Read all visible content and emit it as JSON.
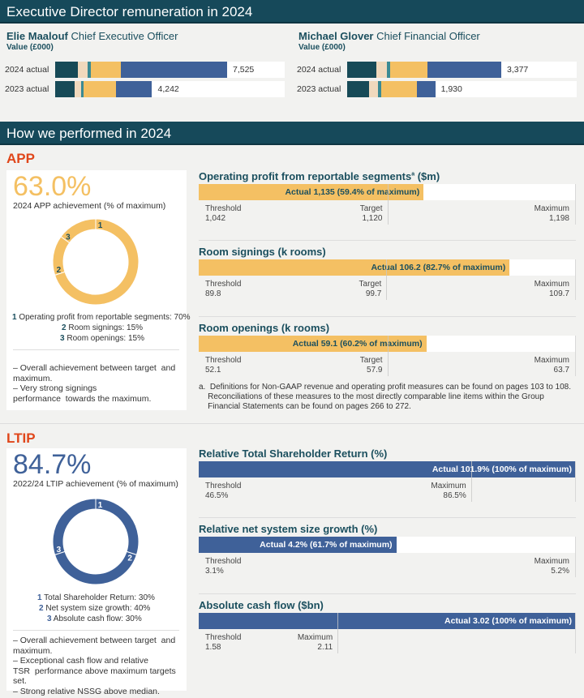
{
  "colors": {
    "dark_teal": "#174a57",
    "beige": "#f0d9bd",
    "teal": "#3b8a94",
    "yellow": "#f4c063",
    "blue": "#3f6199",
    "orange": "#e0461a",
    "header": "#16495a"
  },
  "header1": "Executive Director remuneration in 2024",
  "header2": "How we performed in 2024",
  "remuneration": {
    "value_label": "Value (£000)",
    "directors": [
      {
        "name": "Elie Maalouf",
        "role": "Chief Executive Officer",
        "rows": [
          {
            "label": "2024 actual",
            "total": "7,525",
            "total_value": 7525,
            "segments": [
              1010,
              420,
              140,
              1290,
              4665
            ]
          },
          {
            "label": "2023 actual",
            "total": "4,242",
            "total_value": 4242,
            "segments": [
              835,
              313,
              104,
              1426,
              1564
            ]
          }
        ]
      },
      {
        "name": "Michael Glover",
        "role": "Chief Financial Officer",
        "rows": [
          {
            "label": "2024 actual",
            "total": "3,377",
            "total_value": 3377,
            "segments": [
              644,
              226,
              70,
              818,
              1619
            ]
          },
          {
            "label": "2023 actual",
            "total": "1,930",
            "total_value": 1930,
            "segments": [
              487,
              191,
              70,
              783,
              399
            ]
          }
        ]
      }
    ]
  },
  "app": {
    "title": "APP",
    "achievement": "63.0%",
    "caption": "2024 APP achievement (% of maximum)",
    "weights": [
      {
        "n": "1",
        "label": "Operating profit from reportable segments: 70%",
        "value": 70
      },
      {
        "n": "2",
        "label": "Room signings: 15%",
        "value": 15
      },
      {
        "n": "3",
        "label": "Room openings: 15%",
        "value": 15
      }
    ],
    "bullets": [
      "– Overall achievement between target  and maximum.",
      "– Very strong signings performance  towards the maximum."
    ]
  },
  "ltip": {
    "title": "LTIP",
    "achievement": "84.7%",
    "caption": "2022/24 LTIP achievement (% of maximum)",
    "weights": [
      {
        "n": "1",
        "label": "Total Shareholder Return: 30%",
        "value": 30
      },
      {
        "n": "2",
        "label": "Net system size growth: 40%",
        "value": 40
      },
      {
        "n": "3",
        "label": "Absolute cash flow: 30%",
        "value": 30
      }
    ],
    "bullets": [
      "– Overall achievement between target  and maximum.",
      "– Exceptional cash flow and relative TSR  performance above maximum targets set.",
      "– Strong relative NSSG above median."
    ]
  },
  "chart_data": [
    {
      "type": "bar",
      "title": "Operating profit from reportable segments",
      "title_sup": "a",
      "title_unit": " ($m)",
      "color": "yellow",
      "actual": 1135,
      "actual_label": "Actual 1,135 (59.4% of maximum)",
      "xlim": [
        1042,
        1198
      ],
      "ticks": [
        {
          "name": "Threshold",
          "value": 1042,
          "text": "1,042"
        },
        {
          "name": "Target",
          "value": 1120,
          "text": "1,120"
        },
        {
          "name": "Maximum",
          "value": 1198,
          "text": "1,198"
        }
      ]
    },
    {
      "type": "bar",
      "title": "Room signings (k rooms)",
      "color": "yellow",
      "actual": 106.2,
      "actual_label": "Actual 106.2 (82.7% of maximum)",
      "xlim": [
        89.8,
        109.7
      ],
      "ticks": [
        {
          "name": "Threshold",
          "value": 89.8,
          "text": "89.8"
        },
        {
          "name": "Target",
          "value": 99.7,
          "text": "99.7"
        },
        {
          "name": "Maximum",
          "value": 109.7,
          "text": "109.7"
        }
      ]
    },
    {
      "type": "bar",
      "title": "Room openings (k rooms)",
      "color": "yellow",
      "actual": 59.1,
      "actual_label": "Actual 59.1 (60.2% of maximum)",
      "xlim": [
        52.1,
        63.7
      ],
      "ticks": [
        {
          "name": "Threshold",
          "value": 52.1,
          "text": "52.1"
        },
        {
          "name": "Target",
          "value": 57.9,
          "text": "57.9"
        },
        {
          "name": "Maximum",
          "value": 63.7,
          "text": "63.7"
        }
      ]
    },
    {
      "type": "bar",
      "title": "Relative Total Shareholder Return (%)",
      "color": "blue",
      "actual": 101.9,
      "actual_label": "Actual 101.9% (100% of maximum)",
      "xlim": [
        46.5,
        101.9
      ],
      "ticks": [
        {
          "name": "Threshold",
          "value": 46.5,
          "text": "46.5%"
        },
        {
          "name": "Maximum",
          "value": 86.5,
          "text": "86.5%"
        }
      ]
    },
    {
      "type": "bar",
      "title": "Relative net system size growth (%)",
      "color": "blue",
      "actual": 4.2,
      "actual_label": "Actual 4.2% (61.7% of maximum)",
      "xlim": [
        3.1,
        5.2
      ],
      "ticks": [
        {
          "name": "Threshold",
          "value": 3.1,
          "text": "3.1%"
        },
        {
          "name": "Maximum",
          "value": 5.2,
          "text": "5.2%"
        }
      ]
    },
    {
      "type": "bar",
      "title": "Absolute cash flow ($bn)",
      "color": "blue",
      "actual": 3.02,
      "actual_label": "Actual 3.02 (100% of maximum)",
      "xlim": [
        1.58,
        3.02
      ],
      "ticks": [
        {
          "name": "Threshold",
          "value": 1.58,
          "text": "1.58"
        },
        {
          "name": "Maximum",
          "value": 2.11,
          "text": "2.11"
        }
      ]
    }
  ],
  "footnote": [
    "a.  Definitions for Non-GAAP revenue and operating profit measures can be found on pages 103 to 108.",
    "    Reconciliations of these measures to the most directly comparable line items within the Group",
    "    Financial Statements can be found on pages 266 to 272."
  ]
}
